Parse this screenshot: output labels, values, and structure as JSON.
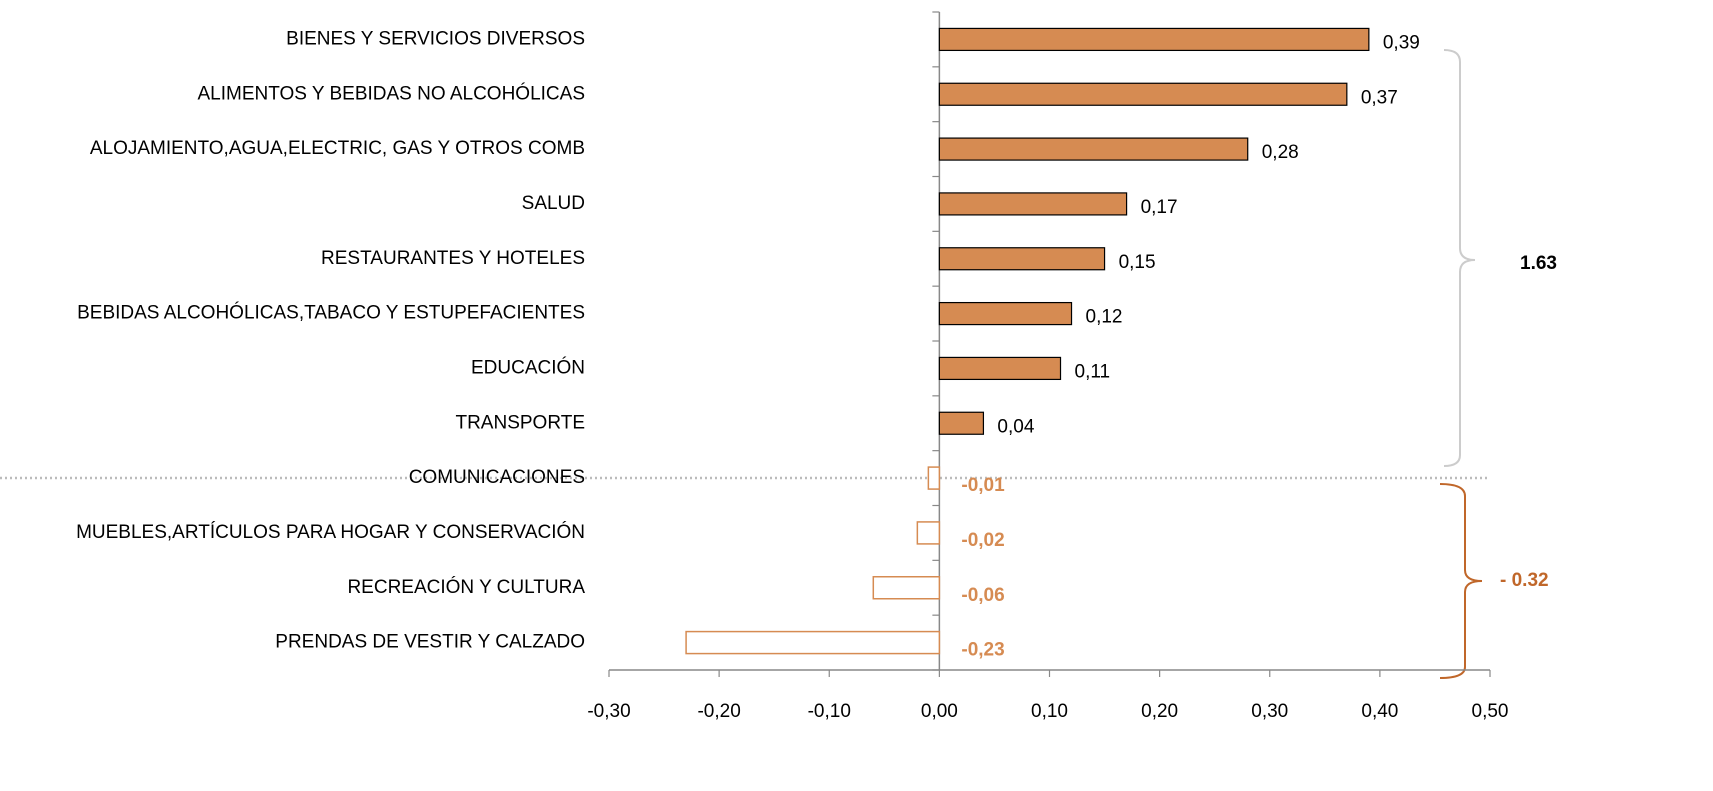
{
  "chart_data": {
    "type": "bar",
    "orientation": "horizontal",
    "categories": [
      "BIENES Y SERVICIOS DIVERSOS",
      "ALIMENTOS Y BEBIDAS NO ALCOHÓLICAS",
      "ALOJAMIENTO,AGUA,ELECTRIC, GAS Y OTROS COMB",
      "SALUD",
      "RESTAURANTES Y HOTELES",
      "BEBIDAS ALCOHÓLICAS,TABACO Y ESTUPEFACIENTES",
      "EDUCACIÓN",
      "TRANSPORTE",
      "COMUNICACIONES",
      "MUEBLES,ARTÍCULOS PARA HOGAR Y CONSERVACIÓN",
      "RECREACIÓN Y CULTURA",
      "PRENDAS DE VESTIR Y CALZADO"
    ],
    "values": [
      0.39,
      0.37,
      0.28,
      0.17,
      0.15,
      0.12,
      0.11,
      0.04,
      -0.01,
      -0.02,
      -0.06,
      -0.23
    ],
    "value_labels": [
      "0,39",
      "0,37",
      "0,28",
      "0,17",
      "0,15",
      "0,12",
      "0,11",
      "0,04",
      "-0,01",
      "-0,02",
      "-0,06",
      "-0,23"
    ],
    "color": "#d68b52",
    "negative_color": "#d68b52",
    "xlim": [
      -0.3,
      0.5
    ],
    "xticks": [
      {
        "value": -0.3,
        "label": "-0,30"
      },
      {
        "value": -0.2,
        "label": "-0,20"
      },
      {
        "value": -0.1,
        "label": "-0,10"
      },
      {
        "value": 0,
        "label": "0,00"
      },
      {
        "value": 0.1,
        "label": "0,10"
      },
      {
        "value": 0.2,
        "label": "0,20"
      },
      {
        "value": 0.3,
        "label": "0,30"
      },
      {
        "value": 0.4,
        "label": "0,40"
      },
      {
        "value": 0.5,
        "label": "0,50"
      }
    ],
    "annotations": [
      "1.63",
      "- 0.32"
    ],
    "grid": false
  }
}
